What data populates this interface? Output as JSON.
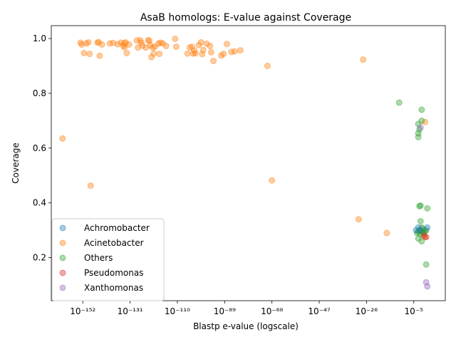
{
  "chart_data": {
    "type": "scatter",
    "title": "AsaB homologs: E-value against Coverage",
    "xlabel": "Blastp e-value (logscale)",
    "ylabel": "Coverage",
    "x_scale": "log10",
    "xlim_exponent": [
      -166,
      9
    ],
    "ylim": [
      0.043,
      1.047
    ],
    "x_ticks": [
      {
        "exponent": -152,
        "label": "10⁻¹⁵²"
      },
      {
        "exponent": -131,
        "label": "10⁻¹³¹"
      },
      {
        "exponent": -110,
        "label": "10⁻¹¹⁰"
      },
      {
        "exponent": -89,
        "label": "10⁻⁸⁹"
      },
      {
        "exponent": -68,
        "label": "10⁻⁶⁸"
      },
      {
        "exponent": -47,
        "label": "10⁻⁴⁷"
      },
      {
        "exponent": -26,
        "label": "10⁻²⁶"
      },
      {
        "exponent": -5,
        "label": "10⁻⁵"
      }
    ],
    "y_ticks": [
      {
        "value": 0.2,
        "label": "0.2"
      },
      {
        "value": 0.4,
        "label": "0.4"
      },
      {
        "value": 0.6,
        "label": "0.6"
      },
      {
        "value": 0.8,
        "label": "0.8"
      },
      {
        "value": 1.0,
        "label": "1.0"
      }
    ],
    "grid": false,
    "legend_position": "lower-left",
    "marker_alpha": 0.4,
    "series": [
      {
        "name": "Acinetobacter",
        "color": "#ff7f0e",
        "points": [
          [
            -161,
            0.635
          ],
          [
            -153,
            0.985
          ],
          [
            -152.5,
            0.978
          ],
          [
            -151.5,
            0.947
          ],
          [
            -150.5,
            0.982
          ],
          [
            -149.5,
            0.986
          ],
          [
            -149,
            0.944
          ],
          [
            -145.5,
            0.985
          ],
          [
            -145,
            0.987
          ],
          [
            -144.5,
            0.937
          ],
          [
            -143.5,
            0.978
          ],
          [
            -140,
            0.982
          ],
          [
            -138.5,
            0.984
          ],
          [
            -136.5,
            0.979
          ],
          [
            -135,
            0.985
          ],
          [
            -134,
            0.974
          ],
          [
            -133.5,
            0.968
          ],
          [
            -133.5,
            0.982
          ],
          [
            -133,
            0.986
          ],
          [
            -132.5,
            0.947
          ],
          [
            -131.5,
            0.978
          ],
          [
            -128,
            0.993
          ],
          [
            -127.5,
            0.967
          ],
          [
            -126.5,
            0.994
          ],
          [
            -126,
            0.985
          ],
          [
            -125.5,
            0.974
          ],
          [
            -124,
            0.967
          ],
          [
            -123,
            0.994
          ],
          [
            -122.5,
            0.992
          ],
          [
            -122,
            0.975
          ],
          [
            -121.5,
            0.932
          ],
          [
            -121,
            0.967
          ],
          [
            -120.5,
            0.945
          ],
          [
            -120,
            0.97
          ],
          [
            -118.5,
            0.981
          ],
          [
            -118,
            0.944
          ],
          [
            -117.5,
            0.985
          ],
          [
            -116.5,
            0.982
          ],
          [
            -115,
            0.973
          ],
          [
            -111,
            0.999
          ],
          [
            -110.5,
            0.97
          ],
          [
            -105.5,
            0.945
          ],
          [
            -104.5,
            0.967
          ],
          [
            -103.5,
            0.97
          ],
          [
            -103,
            0.945
          ],
          [
            -102.5,
            0.956
          ],
          [
            -102,
            0.946
          ],
          [
            -100.5,
            0.976
          ],
          [
            -99.5,
            0.986
          ],
          [
            -99,
            0.943
          ],
          [
            -98.5,
            0.958
          ],
          [
            -97,
            0.981
          ],
          [
            -95.5,
            0.973
          ],
          [
            -95,
            0.95
          ],
          [
            -94,
            0.918
          ],
          [
            -90.5,
            0.938
          ],
          [
            -89.5,
            0.944
          ],
          [
            -88,
            0.98
          ],
          [
            -86,
            0.951
          ],
          [
            -84.5,
            0.953
          ],
          [
            -82,
            0.957
          ],
          [
            -148.5,
            0.463
          ],
          [
            -70,
            0.9
          ],
          [
            -68,
            0.482
          ],
          [
            -29.5,
            0.34
          ],
          [
            -27.5,
            0.923
          ],
          [
            -17,
            0.29
          ],
          [
            0,
            0.695
          ],
          [
            -1,
            0.29
          ],
          [
            0,
            0.275
          ]
        ]
      },
      {
        "name": "Others",
        "color": "#2ca02c",
        "points": [
          [
            -11.5,
            0.766
          ],
          [
            -1.5,
            0.74
          ],
          [
            -1.5,
            0.7
          ],
          [
            -3,
            0.688
          ],
          [
            -2.5,
            0.668
          ],
          [
            -3,
            0.654
          ],
          [
            -3,
            0.64
          ],
          [
            -2.5,
            0.388
          ],
          [
            -2,
            0.39
          ],
          [
            1,
            0.38
          ],
          [
            -2,
            0.333
          ],
          [
            -3.5,
            0.29
          ],
          [
            -2.5,
            0.3
          ],
          [
            -1.5,
            0.31
          ],
          [
            -1,
            0.295
          ],
          [
            -0.5,
            0.29
          ],
          [
            0.5,
            0.3
          ],
          [
            -2,
            0.285
          ],
          [
            -1,
            0.305
          ],
          [
            0,
            0.298
          ],
          [
            -3,
            0.27
          ],
          [
            -1.5,
            0.26
          ],
          [
            0.5,
            0.175
          ],
          [
            -3,
            0.295
          ]
        ]
      },
      {
        "name": "Achromobacter",
        "color": "#1f77b4",
        "points": [
          [
            -3,
            0.31
          ],
          [
            1,
            0.31
          ],
          [
            -4,
            0.3
          ],
          [
            -2,
            0.3
          ]
        ]
      },
      {
        "name": "Pseudomonas",
        "color": "#d62728",
        "points": [
          [
            0.5,
            0.275
          ],
          [
            -0.5,
            0.28
          ]
        ]
      },
      {
        "name": "Xanthomonas",
        "color": "#9467bd",
        "points": [
          [
            -2,
            0.675
          ],
          [
            0.5,
            0.11
          ],
          [
            1,
            0.095
          ]
        ]
      }
    ],
    "legend_order": [
      "Achromobacter",
      "Acinetobacter",
      "Others",
      "Pseudomonas",
      "Xanthomonas"
    ]
  }
}
